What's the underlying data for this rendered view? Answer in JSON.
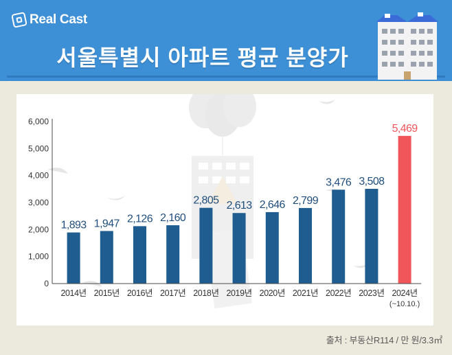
{
  "header": {
    "logo_text": "Real Cast",
    "title": "서울특별시 아파트 평균 분양가"
  },
  "chart_data": {
    "type": "bar",
    "title": "서울특별시 아파트 평균 분양가",
    "categories": [
      "2014년",
      "2015년",
      "2016년",
      "2017년",
      "2018년",
      "2019년",
      "2020년",
      "2021년",
      "2022년",
      "2023년",
      "2024년"
    ],
    "category_notes": [
      "",
      "",
      "",
      "",
      "",
      "",
      "",
      "",
      "",
      "",
      "(~10.10.)"
    ],
    "values": [
      1893,
      1947,
      2126,
      2160,
      2805,
      2613,
      2646,
      2799,
      3476,
      3508,
      5469
    ],
    "value_labels": [
      "1,893",
      "1,947",
      "2,126",
      "2,160",
      "2,805",
      "2,613",
      "2,646",
      "2,799",
      "3,476",
      "3,508",
      "5,469"
    ],
    "y_ticks": [
      "0",
      "1,000",
      "2,000",
      "3,000",
      "4,000",
      "5,000",
      "6,000"
    ],
    "ylim": [
      0,
      6000
    ],
    "grid": false,
    "colors": {
      "bar": "#1f5c8f",
      "highlight": "#f0565a",
      "label": "#1f4e7d",
      "highlight_label": "#f0565a"
    },
    "highlight_index": 10
  },
  "footer": {
    "source": "출처 : 부동산R114 / 만 원/3.3㎡"
  }
}
